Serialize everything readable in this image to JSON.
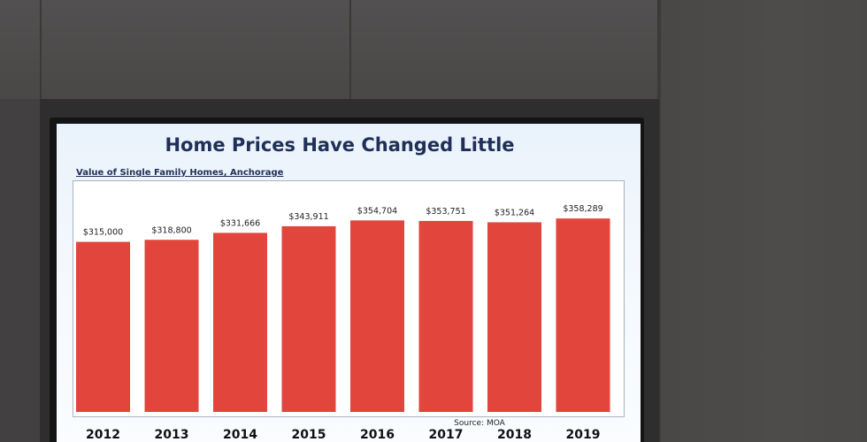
{
  "slide": {
    "title": "Home Prices Have Changed Little",
    "subtitle": "Value of Single Family Homes, Anchorage",
    "source": "Source: MOA"
  },
  "colors": {
    "bar": "#e2453c",
    "screen_bg": "#f4f8fd",
    "title_text": "#1f2f57"
  },
  "chart_data": {
    "type": "bar",
    "title": "Home Prices Have Changed Little",
    "subtitle": "Value of Single Family Homes, Anchorage",
    "categories": [
      "2012",
      "2013",
      "2014",
      "2015",
      "2016",
      "2017",
      "2018",
      "2019"
    ],
    "values": [
      315000,
      318800,
      331666,
      343911,
      354704,
      353751,
      351264,
      358289
    ],
    "value_labels": [
      "$315,000",
      "$318,800",
      "$331,666",
      "$343,911",
      "$354,704",
      "$353,751",
      "$351,264",
      "$358,289"
    ],
    "xlabel": "",
    "ylabel": "",
    "ylim": [
      0,
      370000
    ],
    "grid": false,
    "legend": "none"
  }
}
